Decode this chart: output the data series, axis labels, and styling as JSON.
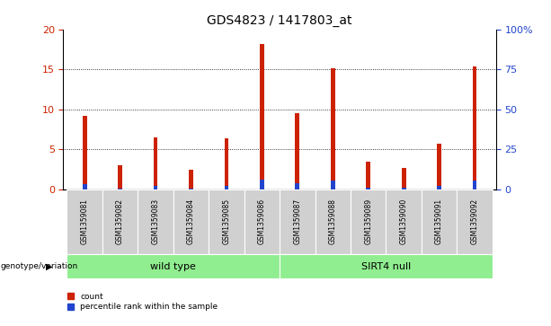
{
  "title": "GDS4823 / 1417803_at",
  "samples": [
    "GSM1359081",
    "GSM1359082",
    "GSM1359083",
    "GSM1359084",
    "GSM1359085",
    "GSM1359086",
    "GSM1359087",
    "GSM1359088",
    "GSM1359089",
    "GSM1359090",
    "GSM1359091",
    "GSM1359092"
  ],
  "counts": [
    9.2,
    3.0,
    6.5,
    2.4,
    6.4,
    18.2,
    9.5,
    15.1,
    3.4,
    2.7,
    5.7,
    15.3
  ],
  "percentile_ranks": [
    3.2,
    0.5,
    1.9,
    0.4,
    2.0,
    6.0,
    3.4,
    5.5,
    0.9,
    1.0,
    1.8,
    5.5
  ],
  "groups": [
    {
      "label": "wild type",
      "start": 0,
      "end": 6
    },
    {
      "label": "SIRT4 null",
      "start": 6,
      "end": 12
    }
  ],
  "group_color": "#90ee90",
  "ylim_left": [
    0,
    20
  ],
  "ylim_right": [
    0,
    100
  ],
  "yticks_left": [
    0,
    5,
    10,
    15,
    20
  ],
  "yticks_right": [
    0,
    25,
    50,
    75,
    100
  ],
  "ytick_labels_right": [
    "0",
    "25",
    "50",
    "75",
    "100%"
  ],
  "bar_color": "#cc2200",
  "percentile_color": "#2244cc",
  "bar_width": 0.12,
  "pct_bar_width": 0.12,
  "background_color": "#ffffff",
  "plot_bg_color": "#ffffff",
  "tick_color_left": "#cc2200",
  "tick_color_right": "#2244cc",
  "sample_label_bg": "#d0d0d0",
  "legend_items": [
    {
      "label": "count",
      "color": "#cc2200"
    },
    {
      "label": "percentile rank within the sample",
      "color": "#2244cc"
    }
  ],
  "genotype_label": "genotype/variation",
  "grid_lines": [
    5,
    10,
    15
  ]
}
